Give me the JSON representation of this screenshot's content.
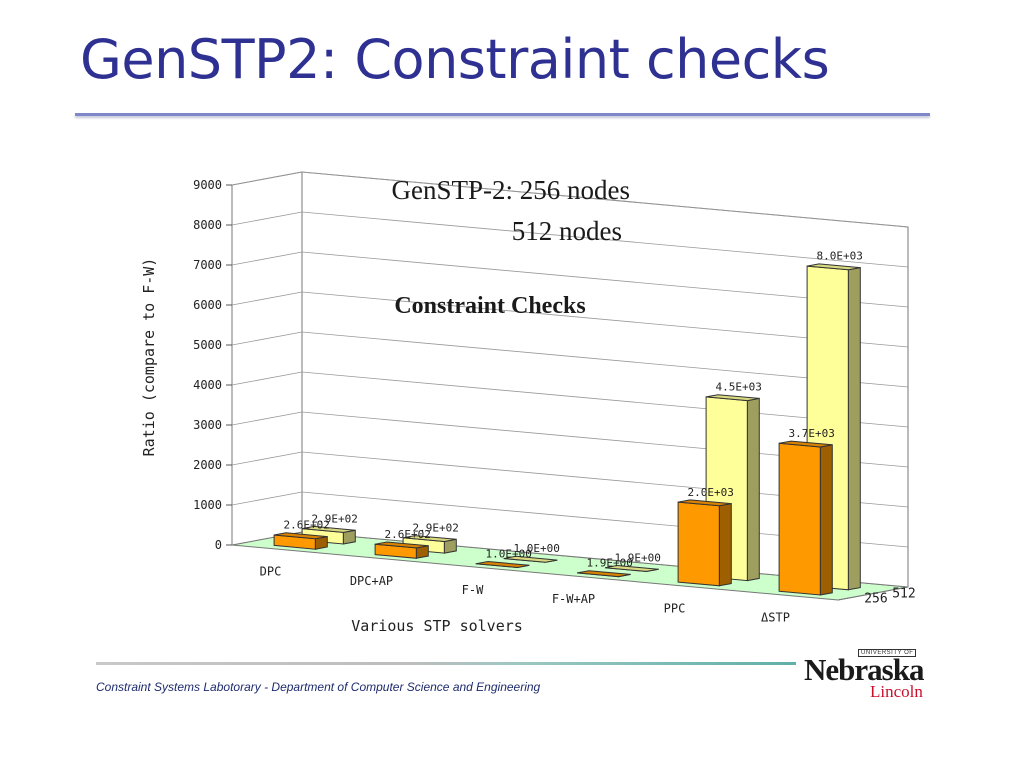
{
  "slide": {
    "title": "GenSTP2: Constraint checks",
    "footer": "Constraint Systems Labotorary - Department of Computer Science and Engineering",
    "logo": {
      "small": "UNIVERSITY OF",
      "main": "Nebraska",
      "sub": "Lincoln"
    }
  },
  "chart_data": {
    "type": "bar",
    "title": "Constraint Checks",
    "legend_text": [
      "GenSTP-2: 256 nodes",
      "512 nodes"
    ],
    "xlabel": "Various STP solvers",
    "ylabel": "Ratio (compare to F-W)",
    "categories": [
      "DPC",
      "DPC+AP",
      "F-W",
      "F-W+AP",
      "PPC",
      "ΔSTP"
    ],
    "depth_labels": [
      "512",
      "256"
    ],
    "ylim": [
      0,
      9000
    ],
    "yticks": [
      "0",
      "1000",
      "2000",
      "3000",
      "4000",
      "5000",
      "6000",
      "7000",
      "8000",
      "9000"
    ],
    "series": [
      {
        "name": "256",
        "values": [
          260,
          260,
          1,
          1.9,
          2000,
          3700
        ],
        "labels": [
          "2.6E+02",
          "2.6E+02",
          "1.0E+00",
          "1.9E+00",
          "2.0E+03",
          "3.7E+03"
        ],
        "color": "#ff9900"
      },
      {
        "name": "512",
        "values": [
          290,
          290,
          1,
          1.9,
          4500,
          8000
        ],
        "labels": [
          "2.9E+02",
          "2.9E+02",
          "1.0E+00",
          "1.9E+00",
          "4.5E+03",
          "8.0E+03"
        ],
        "color": "#ffff99"
      }
    ],
    "grid": true,
    "floor_color": "#ccffcc"
  }
}
